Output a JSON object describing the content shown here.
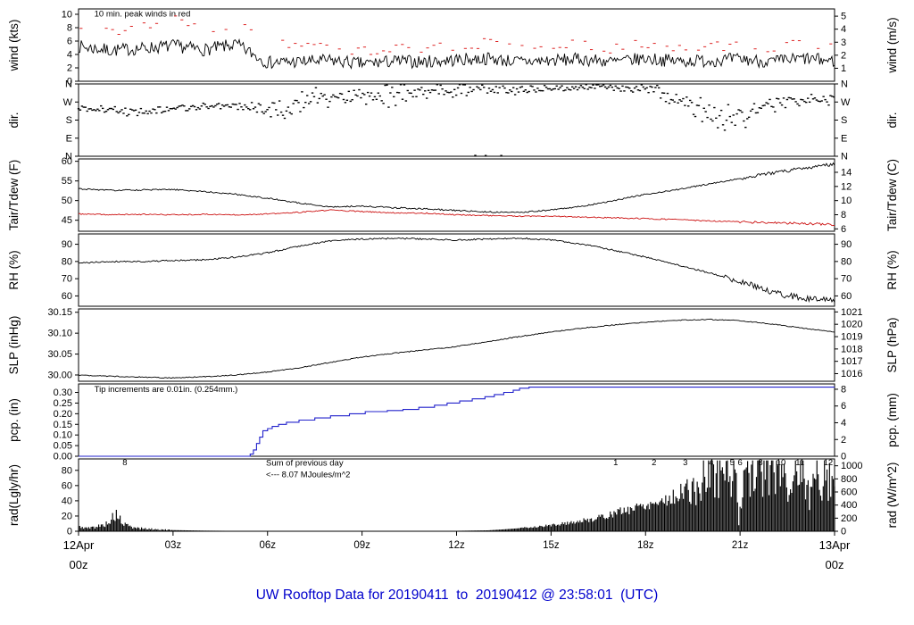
{
  "title": "UW Rooftop Data for 20190411  to  20190412 @ 23:58:01  (UTC)",
  "title_color": "#0000cc",
  "colors": {
    "series_black": "#000000",
    "accent_red": "#dd2222",
    "accent_blue": "#2222cc",
    "accent_purple": "#9933cc",
    "date_red": "#cc0000"
  },
  "x_axis": {
    "range_hours": [
      0,
      24
    ],
    "tick_hours": [
      3,
      6,
      9,
      12,
      15,
      18,
      21
    ],
    "tick_labels": [
      "03z",
      "06z",
      "09z",
      "12z",
      "15z",
      "18z",
      "21z"
    ],
    "start": {
      "line1": "12Apr",
      "line2": "00z"
    },
    "end": {
      "line1": "13Apr",
      "line2": "00z"
    },
    "end_color": "#cc0000"
  },
  "chart_data": [
    {
      "id": "wind",
      "type": "line",
      "label_left": "wind (kts)",
      "label_right": "wind (m/s)",
      "ylim": [
        0,
        10.8
      ],
      "ticks_left": {
        "values": [
          0,
          2,
          4,
          6,
          8,
          10
        ],
        "labels": [
          "0",
          "2",
          "4",
          "6",
          "8",
          "10"
        ]
      },
      "ticks_right": {
        "values": [
          1.94,
          3.89,
          5.83,
          7.78,
          9.72
        ],
        "labels": [
          "1",
          "2",
          "3",
          "4",
          "5"
        ]
      },
      "annotations": [
        {
          "text": "10 min. peak winds in red",
          "color": "#dd2222",
          "h": 0.5,
          "v": 9.7,
          "size": 9.5
        }
      ],
      "series": [
        {
          "name": "wind-avg-line",
          "kind": "noisy-line",
          "color": "#000000",
          "noise": 1.3,
          "min": 0.3,
          "seed": 7,
          "hourly": [
            5.2,
            4.6,
            4.9,
            5.3,
            4.7,
            5.5,
            2.8,
            2.9,
            3.1,
            2.6,
            3.0,
            2.9,
            3.2,
            3.4,
            2.9,
            3.1,
            3.3,
            2.9,
            3.4,
            3.0,
            3.1,
            3.3,
            2.9,
            3.4,
            3.0
          ]
        },
        {
          "name": "wind-peak-marks",
          "kind": "peak-dashes",
          "color": "#dd2222",
          "noise": 0.8,
          "seed": 13,
          "step": 0.2,
          "hourly": [
            8.2,
            7.2,
            8.4,
            9.2,
            7.8,
            8.6,
            5.8,
            4.9,
            5.2,
            4.4,
            5.0,
            4.8,
            5.4,
            5.6,
            4.9,
            5.2,
            5.5,
            4.9,
            5.6,
            5.0,
            5.2,
            5.5,
            4.8,
            5.6,
            5.0
          ]
        }
      ]
    },
    {
      "id": "dir",
      "type": "scatter",
      "label_left": "dir.",
      "label_right": "dir.",
      "ylim": [
        0,
        360
      ],
      "ticks_left": {
        "values": [
          0,
          90,
          180,
          270,
          360
        ],
        "labels": [
          "N",
          "E",
          "S",
          "W",
          "N"
        ]
      },
      "ticks_right": {
        "values": [
          0,
          90,
          180,
          270,
          360
        ],
        "labels": [
          "N",
          "E",
          "S",
          "W",
          "N"
        ]
      },
      "annotations": [],
      "series": [
        {
          "name": "wind-direction-scatter",
          "kind": "dir-scatter",
          "color": "#000000",
          "seed": 21,
          "mean": [
            240,
            230,
            222,
            236,
            250,
            244,
            230,
            265,
            300,
            310,
            305,
            320,
            330,
            338,
            332,
            336,
            340,
            344,
            340,
            285,
            205,
            185,
            255,
            278,
            285
          ],
          "spread": [
            28,
            24,
            28,
            30,
            24,
            30,
            55,
            75,
            60,
            60,
            68,
            50,
            42,
            40,
            30,
            28,
            25,
            25,
            30,
            75,
            80,
            70,
            60,
            40,
            30
          ]
        }
      ]
    },
    {
      "id": "temperature",
      "type": "line",
      "label_left": "Tair/Tdew (F)",
      "label_right": "Tair/Tdew (C)",
      "ylim": [
        42.2,
        60.6
      ],
      "ticks_left": {
        "values": [
          45,
          50,
          55,
          60
        ],
        "labels": [
          "45",
          "50",
          "55",
          "60"
        ]
      },
      "ticks_right": {
        "values": [
          42.8,
          46.4,
          50.0,
          53.6,
          57.2
        ],
        "labels": [
          "6",
          "8",
          "10",
          "12",
          "14"
        ]
      },
      "annotations": [],
      "series": [
        {
          "name": "tair-line",
          "kind": "noisy-line",
          "color": "#000000",
          "noise": 0.25,
          "seed": 31,
          "noise2_after": 21,
          "noise2_mult": 2.2,
          "hourly": [
            53.0,
            52.6,
            52.7,
            52.8,
            52.3,
            51.6,
            50.6,
            49.4,
            48.4,
            48.6,
            48.2,
            47.9,
            47.5,
            47.1,
            47.0,
            47.6,
            48.6,
            50.0,
            51.6,
            52.8,
            54.2,
            55.6,
            57.0,
            58.2,
            59.3
          ]
        },
        {
          "name": "tdew-line",
          "kind": "noisy-line",
          "color": "#cc1111",
          "noise": 0.2,
          "seed": 37,
          "noise2_after": 21,
          "noise2_mult": 2.0,
          "hourly": [
            46.6,
            46.4,
            46.5,
            46.4,
            46.5,
            46.4,
            46.6,
            47.0,
            47.6,
            47.2,
            46.9,
            46.8,
            46.4,
            46.2,
            46.0,
            46.0,
            45.8,
            45.6,
            45.4,
            45.2,
            44.8,
            44.6,
            44.3,
            44.2,
            43.9
          ]
        }
      ]
    },
    {
      "id": "rh",
      "type": "line",
      "label_left": "RH (%)",
      "label_right": "RH (%)",
      "ylim": [
        54,
        96
      ],
      "ticks_left": {
        "values": [
          60,
          70,
          80,
          90
        ],
        "labels": [
          "60",
          "70",
          "80",
          "90"
        ]
      },
      "ticks_right": {
        "values": [
          60,
          70,
          80,
          90
        ],
        "labels": [
          "60",
          "70",
          "80",
          "90"
        ]
      },
      "annotations": [],
      "series": [
        {
          "name": "rh-line",
          "kind": "noisy-line",
          "color": "#000000",
          "noise": 0.6,
          "seed": 41,
          "noise2_after": 20.5,
          "noise2_mult": 4,
          "hourly": [
            79,
            80,
            80,
            80.5,
            81,
            82.5,
            85,
            89,
            92,
            93,
            93.5,
            93,
            92.5,
            93,
            93.5,
            92.5,
            90,
            86.5,
            82.5,
            78,
            73.5,
            68.5,
            62,
            58.5,
            57.5
          ]
        }
      ]
    },
    {
      "id": "slp",
      "type": "line",
      "label_left": "SLP (inHg)",
      "label_right": "SLP (hPa)",
      "ylim": [
        29.985,
        30.158
      ],
      "ticks_left": {
        "values": [
          30.0,
          30.05,
          30.1,
          30.15
        ],
        "labels": [
          "30.00",
          "30.05",
          "30.10",
          "30.15"
        ]
      },
      "ticks_right": {
        "values": [
          30.0032,
          30.0327,
          30.0622,
          30.0917,
          30.1213,
          30.1508
        ],
        "labels": [
          "1016",
          "1017",
          "1018",
          "1019",
          "1020",
          "1021"
        ]
      },
      "annotations": [],
      "series": [
        {
          "name": "slp-line",
          "kind": "noisy-line",
          "color": "#000000",
          "noise": 0.0015,
          "seed": 47,
          "hourly": [
            30.0,
            29.997,
            29.995,
            29.993,
            29.996,
            30.0,
            30.007,
            30.017,
            30.03,
            30.043,
            30.052,
            30.06,
            30.068,
            30.08,
            30.092,
            30.103,
            30.112,
            30.12,
            30.126,
            30.131,
            30.133,
            30.13,
            30.122,
            30.112,
            30.103
          ]
        }
      ]
    },
    {
      "id": "pcp",
      "type": "step",
      "label_left": "pcp. (in)",
      "label_right": "pcp. (mm)",
      "ylim": [
        0,
        0.34
      ],
      "ticks_left": {
        "values": [
          0.0,
          0.05,
          0.1,
          0.15,
          0.2,
          0.25,
          0.3
        ],
        "labels": [
          "0.00",
          "0.05",
          "0.10",
          "0.15",
          "0.20",
          "0.25",
          "0.30"
        ]
      },
      "ticks_right": {
        "values": [
          0,
          0.0787,
          0.1575,
          0.2362,
          0.315
        ],
        "labels": [
          "0",
          "2",
          "4",
          "6",
          "8"
        ]
      },
      "annotations": [
        {
          "text": "Tip increments are 0.01in. (0.254mm.)",
          "color": "#2222cc",
          "h": 0.5,
          "v": 0.302,
          "size": 9.5
        }
      ],
      "series": [
        {
          "name": "pcp-step-line",
          "kind": "step-line",
          "color": "#2222cc",
          "points": [
            [
              0,
              0
            ],
            [
              5.35,
              0
            ],
            [
              5.45,
              0.01
            ],
            [
              5.55,
              0.03
            ],
            [
              5.65,
              0.06
            ],
            [
              5.75,
              0.09
            ],
            [
              5.85,
              0.12
            ],
            [
              6.0,
              0.13
            ],
            [
              6.15,
              0.14
            ],
            [
              6.35,
              0.15
            ],
            [
              6.6,
              0.16
            ],
            [
              7.0,
              0.17
            ],
            [
              7.5,
              0.18
            ],
            [
              8.0,
              0.19
            ],
            [
              8.6,
              0.2
            ],
            [
              9.1,
              0.21
            ],
            [
              9.8,
              0.215
            ],
            [
              10.3,
              0.22
            ],
            [
              10.8,
              0.23
            ],
            [
              11.3,
              0.24
            ],
            [
              11.7,
              0.25
            ],
            [
              12.1,
              0.26
            ],
            [
              12.5,
              0.27
            ],
            [
              12.9,
              0.28
            ],
            [
              13.2,
              0.29
            ],
            [
              13.5,
              0.3
            ],
            [
              13.8,
              0.31
            ],
            [
              14.0,
              0.32
            ],
            [
              14.3,
              0.325
            ],
            [
              24,
              0.325
            ]
          ]
        }
      ]
    },
    {
      "id": "rad",
      "type": "area",
      "label_left": "rad(Lgly/hr)",
      "label_right": "rad (W/m^2)",
      "ylim": [
        0,
        95
      ],
      "ticks_left": {
        "values": [
          0,
          20,
          40,
          60,
          80
        ],
        "labels": [
          "0",
          "20",
          "40",
          "60",
          "80"
        ]
      },
      "ticks_right": {
        "values": [
          0,
          17.2,
          34.4,
          51.6,
          68.8,
          86.0
        ],
        "labels": [
          "0",
          "200",
          "400",
          "600",
          "800",
          "1000"
        ]
      },
      "annotations": [
        {
          "text": "Sum of previous day",
          "color": "#9933cc",
          "h": 5.95,
          "v": 86,
          "size": 9.5
        },
        {
          "text": "<--- 8.07 MJoules/m^2",
          "color": "#9933cc",
          "h": 5.95,
          "v": 71,
          "size": 9.5
        },
        {
          "text": "8",
          "color": "#9933cc",
          "h": 1.47,
          "v": 87,
          "size": 9.5,
          "anchor": "middle"
        },
        {
          "text": "1",
          "color": "#9933cc",
          "h": 17.05,
          "v": 87,
          "size": 9.5,
          "anchor": "middle"
        },
        {
          "text": "2",
          "color": "#9933cc",
          "h": 18.27,
          "v": 87,
          "size": 9.5,
          "anchor": "middle"
        },
        {
          "text": "3",
          "color": "#9933cc",
          "h": 19.26,
          "v": 87,
          "size": 9.5,
          "anchor": "middle"
        },
        {
          "text": "4",
          "color": "#9933cc",
          "h": 20.08,
          "v": 87,
          "size": 9.5,
          "anchor": "middle"
        },
        {
          "text": "5",
          "color": "#9933cc",
          "h": 20.75,
          "v": 87,
          "size": 9.5,
          "anchor": "middle"
        },
        {
          "text": "6",
          "color": "#9933cc",
          "h": 21.0,
          "v": 87,
          "size": 9.5,
          "anchor": "middle"
        },
        {
          "text": "8",
          "color": "#9933cc",
          "h": 21.65,
          "v": 87,
          "size": 9.5,
          "anchor": "middle"
        },
        {
          "text": "10",
          "color": "#9933cc",
          "h": 22.3,
          "v": 87,
          "size": 9.5,
          "anchor": "middle"
        },
        {
          "text": "11",
          "color": "#9933cc",
          "h": 22.9,
          "v": 87,
          "size": 9.5,
          "anchor": "middle"
        },
        {
          "text": "12",
          "color": "#9933cc",
          "h": 23.8,
          "v": 87,
          "size": 9.5,
          "anchor": "middle"
        }
      ],
      "series": [
        {
          "name": "rad-impulse-area",
          "kind": "impulse-area",
          "color": "#000000",
          "seed": 5,
          "points": [
            [
              0,
              6
            ],
            [
              0.3,
              4
            ],
            [
              0.8,
              8
            ],
            [
              1.0,
              14
            ],
            [
              1.2,
              22
            ],
            [
              1.4,
              10
            ],
            [
              1.7,
              5
            ],
            [
              2.2,
              3
            ],
            [
              3,
              1.5
            ],
            [
              4,
              0.8
            ],
            [
              5,
              0.5
            ],
            [
              6,
              0.4
            ],
            [
              7,
              0.3
            ],
            [
              8,
              0.3
            ],
            [
              9,
              0.3
            ],
            [
              10,
              0.3
            ],
            [
              11,
              0.4
            ],
            [
              12,
              0.6
            ],
            [
              13,
              1.2
            ],
            [
              13.5,
              2.5
            ],
            [
              14,
              4
            ],
            [
              14.5,
              6
            ],
            [
              15,
              8
            ],
            [
              15.5,
              11
            ],
            [
              16,
              14
            ],
            [
              16.5,
              18
            ],
            [
              17,
              24
            ],
            [
              17.5,
              30
            ],
            [
              18,
              36
            ],
            [
              18.5,
              41
            ],
            [
              19,
              47
            ],
            [
              19.3,
              60
            ],
            [
              19.5,
              52
            ],
            [
              19.8,
              70
            ],
            [
              20,
              85
            ],
            [
              20.2,
              88
            ],
            [
              20.5,
              86
            ],
            [
              20.7,
              90
            ],
            [
              20.85,
              88
            ],
            [
              20.95,
              3
            ],
            [
              21.1,
              86
            ],
            [
              21.3,
              90
            ],
            [
              21.6,
              88
            ],
            [
              21.9,
              86
            ],
            [
              22.1,
              88
            ],
            [
              22.4,
              87
            ],
            [
              22.55,
              55
            ],
            [
              22.7,
              89
            ],
            [
              23,
              86
            ],
            [
              23.2,
              45
            ],
            [
              23.4,
              82
            ],
            [
              23.6,
              80
            ],
            [
              23.8,
              76
            ],
            [
              24,
              70
            ]
          ]
        }
      ]
    }
  ]
}
